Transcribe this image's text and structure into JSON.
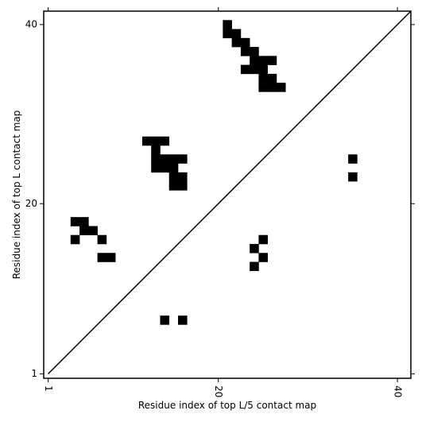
{
  "chart_data": {
    "type": "scatter",
    "marker": "square",
    "diagonal": true,
    "xlabel": "Residue index of top L/5 contact map",
    "ylabel": "Residue index of top L contact map",
    "xlim": [
      0.5,
      41.5
    ],
    "ylim": [
      0.5,
      41.5
    ],
    "xticks": [
      1,
      20,
      40
    ],
    "yticks": [
      1,
      20,
      40
    ],
    "series": [
      {
        "color": "#000000",
        "x": [
          21,
          21,
          22,
          22,
          23,
          23,
          24,
          24,
          25,
          26,
          23,
          24,
          25,
          25,
          26,
          25,
          26,
          27,
          12,
          13,
          14,
          13,
          13,
          14,
          15,
          16,
          13,
          14,
          15,
          15,
          16,
          15,
          16,
          4,
          5,
          5,
          6,
          4,
          7,
          7,
          8
        ],
        "y": [
          40,
          39,
          39,
          38,
          38,
          37,
          37,
          36,
          36,
          36,
          35,
          35,
          35,
          34,
          34,
          33,
          33,
          33,
          27,
          27,
          27,
          26,
          25,
          25,
          25,
          25,
          24,
          24,
          24,
          23,
          23,
          22,
          22,
          18,
          18,
          17,
          17,
          16,
          16,
          14,
          14
        ]
      },
      {
        "color": "#000000",
        "x": [
          35,
          35,
          25,
          24,
          25,
          24,
          14,
          16
        ],
        "y": [
          25,
          23,
          16,
          15,
          14,
          13,
          7,
          7
        ]
      }
    ]
  }
}
